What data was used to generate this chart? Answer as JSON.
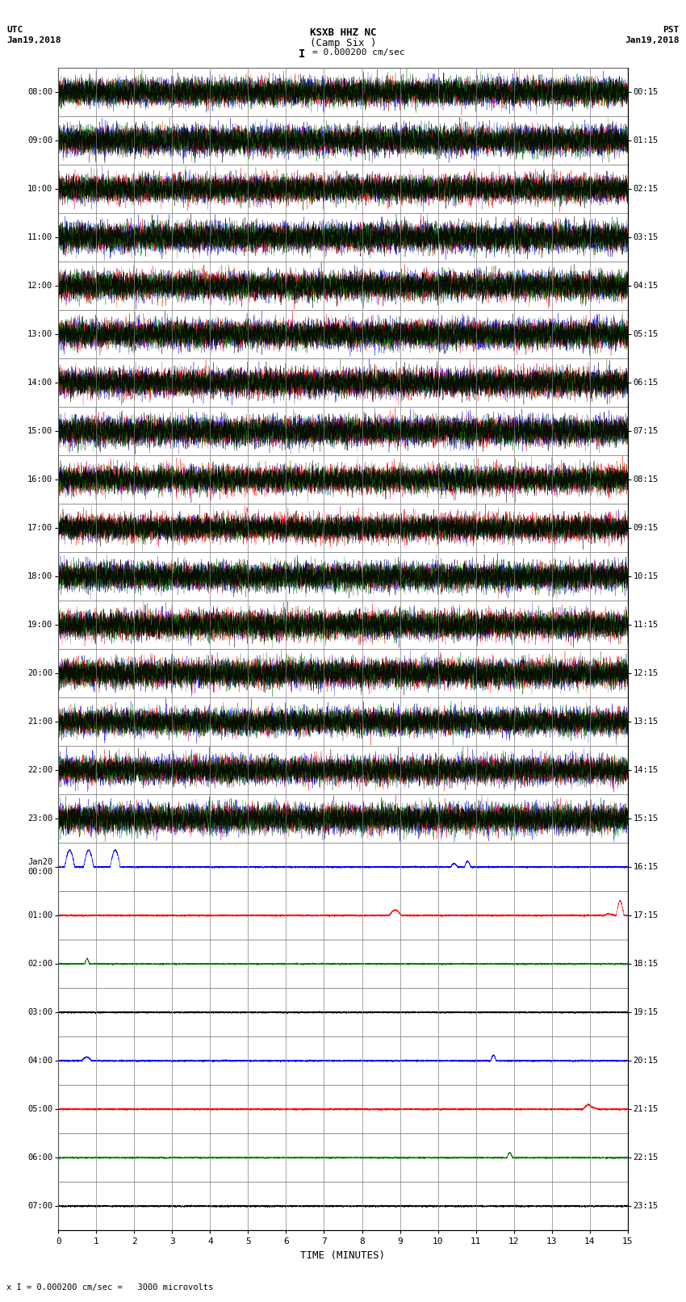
{
  "title_line1": "KSXB HHZ NC",
  "title_line2": "(Camp Six )",
  "scale_label": "I = 0.000200 cm/sec",
  "bottom_label": "x I = 0.000200 cm/sec =   3000 microvolts",
  "utc_label": "UTC",
  "utc_date": "Jan19,2018",
  "pst_label": "PST",
  "pst_date": "Jan19,2018",
  "xlabel": "TIME (MINUTES)",
  "left_times_utc": [
    "08:00",
    "09:00",
    "10:00",
    "11:00",
    "12:00",
    "13:00",
    "14:00",
    "15:00",
    "16:00",
    "17:00",
    "18:00",
    "19:00",
    "20:00",
    "21:00",
    "22:00",
    "23:00",
    "Jan20\n00:00",
    "01:00",
    "02:00",
    "03:00",
    "04:00",
    "05:00",
    "06:00",
    "07:00"
  ],
  "right_times_pst": [
    "00:15",
    "01:15",
    "02:15",
    "03:15",
    "04:15",
    "05:15",
    "06:15",
    "07:15",
    "08:15",
    "09:15",
    "10:15",
    "11:15",
    "12:15",
    "13:15",
    "14:15",
    "15:15",
    "16:15",
    "17:15",
    "18:15",
    "19:15",
    "20:15",
    "21:15",
    "22:15",
    "23:15"
  ],
  "n_rows": 24,
  "n_active_rows": 16,
  "minutes_per_row": 15,
  "bg_color": "#ffffff",
  "grid_color": "#808080",
  "trace_colors": [
    "blue",
    "red",
    "green",
    "black"
  ],
  "fig_width": 8.5,
  "fig_height": 16.13,
  "dpi": 100
}
